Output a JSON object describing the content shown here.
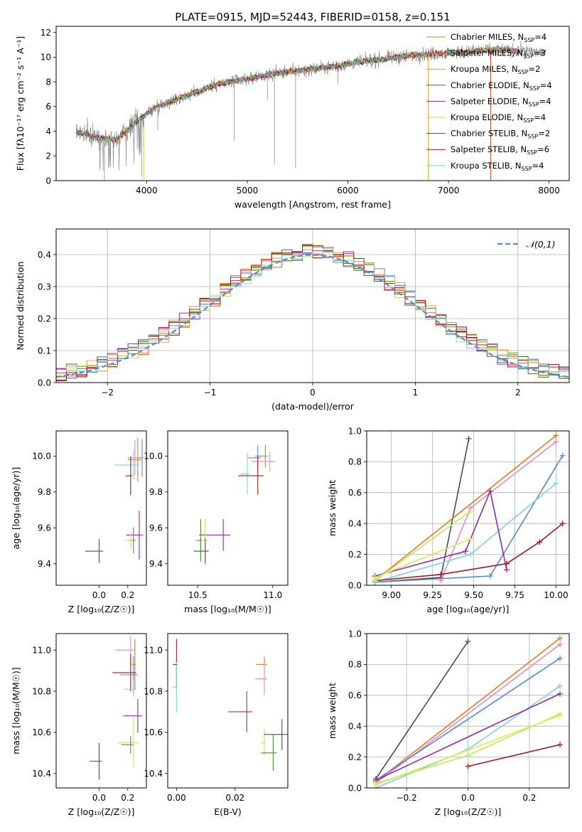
{
  "colors": {
    "cm": "#e67e1e",
    "sm": "#e64a36",
    "km": "#d4a017",
    "ce": "#3a6e35",
    "se": "#8e24aa",
    "ke": "#b7e04a",
    "cs": "#4a4a4a",
    "ss": "#b0141b",
    "ks": "#7fd4d8",
    "data": "#808080",
    "blue": "#5a86d6",
    "orange": "#e07b1f",
    "pink": "#e78ac3",
    "cyan": "#7ed3dc",
    "darkred": "#a8191f",
    "purple": "#932ca8",
    "green": "#4f8c3a",
    "lime": "#c6e65a",
    "yellow": "#d7ea56",
    "dark": "#4d4d4d"
  },
  "chart_data": [
    {
      "type": "line",
      "title": "PLATE=0915, MJD=52443, FIBERID=0158, z=0.151",
      "xlabel": "wavelength [Angstrom, rest frame]",
      "ylabel": "Flux [fλ10⁻¹⁷ erg cm⁻² s⁻¹ A⁻¹]",
      "xlim": [
        3100,
        8200
      ],
      "ylim": [
        0,
        12.5
      ],
      "xticks": [
        4000,
        5000,
        6000,
        7000,
        8000
      ],
      "yticks": [
        0,
        2,
        4,
        6,
        8,
        10,
        12
      ],
      "legend_position": "top-right",
      "legend": [
        "Chabrier MILES, N_SSP=4",
        "Salpeter MILES, N_SSP=3",
        "Kroupa MILES, N_SSP=2",
        "Chabrier ELODIE, N_SSP=4",
        "Salpeter ELODIE, N_SSP=4",
        "Kroupa ELODIE, N_SSP=4",
        "Chabrier STELIB, N_SSP=2",
        "Salpeter STELIB, N_SSP=6",
        "Kroupa STELIB, N_SSP=4"
      ],
      "series_colors": [
        "cm",
        "sm",
        "km",
        "ce",
        "se",
        "ke",
        "cs",
        "ss",
        "ks"
      ],
      "continuum_x": [
        3300,
        3500,
        3700,
        3900,
        4100,
        4300,
        4500,
        4700,
        4900,
        5100,
        5300,
        5500,
        5700,
        5900,
        6100,
        6300,
        6500,
        6700,
        6900,
        7100,
        7300,
        7500,
        7700,
        7900
      ],
      "continuum_y": [
        4.0,
        3.5,
        3.3,
        4.8,
        6.0,
        6.6,
        7.2,
        7.8,
        8.1,
        8.4,
        8.7,
        8.9,
        9.1,
        9.3,
        9.6,
        9.8,
        10.0,
        10.2,
        10.3,
        10.4,
        10.5,
        10.6,
        10.5,
        10.4
      ]
    },
    {
      "type": "line",
      "xlabel": "(data-model)/error",
      "ylabel": "Normed distribution",
      "xlim": [
        -2.5,
        2.5
      ],
      "ylim": [
        0,
        0.48
      ],
      "xticks": [
        -2,
        -1,
        0,
        1,
        2
      ],
      "yticks": [
        0.0,
        0.1,
        0.2,
        0.3,
        0.4
      ],
      "legend": [
        "𝒩(0,1)"
      ],
      "legend_position": "top-right",
      "grid": true,
      "bin_width": 0.1
    },
    {
      "type": "scatter",
      "xlabel": "Z [log₁₀(Z/Z☉)]",
      "ylabel": "age  [log₁₀(age/yr)]",
      "xlim": [
        -0.3,
        0.33
      ],
      "ylim": [
        9.28,
        10.14
      ],
      "xticks": [
        0.0,
        0.2
      ],
      "yticks": [
        9.4,
        9.6,
        9.8,
        10.0
      ],
      "points": [
        {
          "x": 0.3,
          "y": 9.99,
          "c": "blue"
        },
        {
          "x": 0.27,
          "y": 9.98,
          "c": "orange"
        },
        {
          "x": 0.25,
          "y": 9.99,
          "c": "pink"
        },
        {
          "x": 0.24,
          "y": 9.95,
          "c": "cyan"
        },
        {
          "x": 0.22,
          "y": 9.89,
          "c": "darkred"
        },
        {
          "x": 0.28,
          "y": 9.56,
          "c": "purple"
        },
        {
          "x": 0.24,
          "y": 9.53,
          "c": "green"
        },
        {
          "x": 0.22,
          "y": 9.53,
          "c": "lime"
        },
        {
          "x": 0.0,
          "y": 9.47,
          "c": "dark"
        }
      ]
    },
    {
      "type": "scatter",
      "xlabel": "mass [log₁₀(M/M☉)]",
      "ylabel": "",
      "xlim": [
        10.3,
        11.1
      ],
      "ylim": [
        9.28,
        10.14
      ],
      "xticks": [
        10.5,
        11.0
      ],
      "yticks": [
        9.4,
        9.6,
        9.8,
        10.0
      ],
      "points": [
        {
          "x": 10.95,
          "y": 10.0,
          "c": "orange"
        },
        {
          "x": 10.9,
          "y": 9.99,
          "c": "blue"
        },
        {
          "x": 10.98,
          "y": 9.97,
          "c": "pink"
        },
        {
          "x": 10.83,
          "y": 9.9,
          "c": "cyan"
        },
        {
          "x": 10.9,
          "y": 9.89,
          "c": "darkred"
        },
        {
          "x": 10.67,
          "y": 9.56,
          "c": "purple"
        },
        {
          "x": 10.55,
          "y": 9.53,
          "c": "lime"
        },
        {
          "x": 10.52,
          "y": 9.53,
          "c": "green"
        },
        {
          "x": 10.55,
          "y": 9.47,
          "c": "dark"
        }
      ]
    },
    {
      "type": "line",
      "xlabel": "age  [log₁₀(age/yr)]",
      "ylabel": "mass weight",
      "xlim": [
        8.85,
        10.08
      ],
      "ylim": [
        0,
        1.0
      ],
      "xticks": [
        9.0,
        9.25,
        9.5,
        9.75,
        10.0
      ],
      "yticks": [
        0.0,
        0.2,
        0.4,
        0.6,
        0.8,
        1.0
      ],
      "grid": true,
      "series": [
        {
          "c": "dark",
          "x": [
            8.9,
            9.3,
            9.47
          ],
          "y": [
            0.02,
            0.05,
            0.95
          ]
        },
        {
          "c": "orange",
          "x": [
            8.9,
            10.0
          ],
          "y": [
            0.03,
            0.97
          ]
        },
        {
          "c": "pink",
          "x": [
            9.3,
            9.48,
            10.0
          ],
          "y": [
            0.03,
            0.5,
            0.93
          ]
        },
        {
          "c": "blue",
          "x": [
            8.9,
            9.6,
            10.04
          ],
          "y": [
            0.02,
            0.06,
            0.84
          ]
        },
        {
          "c": "cyan",
          "x": [
            8.9,
            9.48,
            10.0
          ],
          "y": [
            0.02,
            0.2,
            0.66
          ]
        },
        {
          "c": "darkred",
          "x": [
            8.9,
            9.3,
            9.7,
            9.9,
            10.04
          ],
          "y": [
            0.03,
            0.07,
            0.14,
            0.28,
            0.4
          ]
        },
        {
          "c": "purple",
          "x": [
            8.9,
            9.45,
            9.6,
            9.7
          ],
          "y": [
            0.06,
            0.22,
            0.61,
            0.1
          ]
        },
        {
          "c": "lime",
          "x": [
            8.9,
            9.48
          ],
          "y": [
            0.03,
            0.48
          ]
        },
        {
          "c": "yellow",
          "x": [
            8.9,
            9.48
          ],
          "y": [
            0.05,
            0.3
          ]
        }
      ]
    },
    {
      "type": "scatter",
      "xlabel": "Z [log₁₀(Z/Z☉)]",
      "ylabel": "mass [log₁₀(M/M☉)]",
      "xlim": [
        -0.3,
        0.33
      ],
      "ylim": [
        10.33,
        11.08
      ],
      "xticks": [
        0.0,
        0.2
      ],
      "yticks": [
        10.4,
        10.6,
        10.8,
        11.0
      ],
      "points": [
        {
          "x": 0.22,
          "y": 11.0,
          "c": "pink"
        },
        {
          "x": 0.25,
          "y": 10.93,
          "c": "orange"
        },
        {
          "x": 0.24,
          "y": 10.88,
          "c": "blue"
        },
        {
          "x": 0.22,
          "y": 10.89,
          "c": "darkred"
        },
        {
          "x": 0.24,
          "y": 10.81,
          "c": "cyan"
        },
        {
          "x": 0.27,
          "y": 10.68,
          "c": "purple"
        },
        {
          "x": 0.24,
          "y": 10.55,
          "c": "lime"
        },
        {
          "x": 0.22,
          "y": 10.54,
          "c": "green"
        },
        {
          "x": 0.0,
          "y": 10.46,
          "c": "dark"
        }
      ]
    },
    {
      "type": "scatter",
      "xlabel": "E(B-V)",
      "ylabel": "",
      "xlim": [
        -0.003,
        0.038
      ],
      "ylim": [
        10.33,
        11.08
      ],
      "xticks": [
        0.0,
        0.02
      ],
      "yticks": [
        10.4,
        10.6,
        10.8,
        11.0
      ],
      "points": [
        {
          "x": 0.0,
          "y": 10.93,
          "c": "darkred"
        },
        {
          "x": 0.0,
          "y": 10.82,
          "c": "cyan"
        },
        {
          "x": 0.03,
          "y": 10.93,
          "c": "orange"
        },
        {
          "x": 0.03,
          "y": 10.86,
          "c": "pink"
        },
        {
          "x": 0.024,
          "y": 10.7,
          "c": "purple"
        },
        {
          "x": 0.03,
          "y": 10.55,
          "c": "lime"
        },
        {
          "x": 0.033,
          "y": 10.5,
          "c": "green"
        },
        {
          "x": 0.036,
          "y": 10.59,
          "c": "dark"
        }
      ]
    },
    {
      "type": "line",
      "xlabel": "Z [log₁₀(Z/Z☉)]",
      "ylabel": "mass weight",
      "xlim": [
        -0.33,
        0.33
      ],
      "ylim": [
        0,
        1.0
      ],
      "xticks": [
        -0.2,
        0.0,
        0.2
      ],
      "yticks": [
        0.0,
        0.2,
        0.4,
        0.6,
        0.8,
        1.0
      ],
      "grid": true,
      "series": [
        {
          "c": "dark",
          "x": [
            -0.3,
            0.0
          ],
          "y": [
            0.06,
            0.95
          ]
        },
        {
          "c": "orange",
          "x": [
            -0.3,
            0.3
          ],
          "y": [
            0.04,
            0.97
          ]
        },
        {
          "c": "pink",
          "x": [
            -0.3,
            0.3
          ],
          "y": [
            0.03,
            0.93
          ]
        },
        {
          "c": "blue",
          "x": [
            -0.3,
            0.3
          ],
          "y": [
            0.05,
            0.84
          ]
        },
        {
          "c": "cyan",
          "x": [
            -0.3,
            0.0,
            0.3
          ],
          "y": [
            0.0,
            0.25,
            0.66
          ]
        },
        {
          "c": "purple",
          "x": [
            -0.3,
            0.3
          ],
          "y": [
            0.05,
            0.61
          ]
        },
        {
          "c": "lime",
          "x": [
            -0.3,
            0.0,
            0.3
          ],
          "y": [
            0.03,
            0.21,
            0.48
          ]
        },
        {
          "c": "darkred",
          "x": [
            0.0,
            0.3
          ],
          "y": [
            0.14,
            0.28
          ]
        },
        {
          "c": "yellow",
          "x": [
            -0.3,
            0.3
          ],
          "y": [
            0.02,
            0.47
          ]
        }
      ]
    }
  ]
}
